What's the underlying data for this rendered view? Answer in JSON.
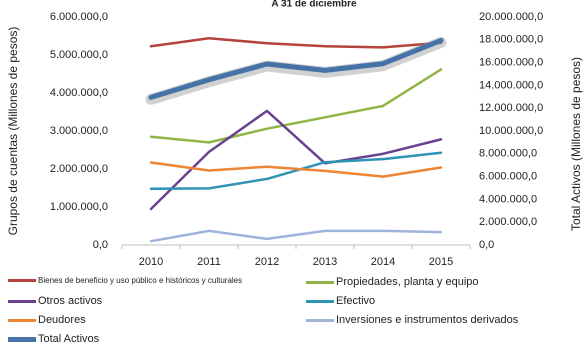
{
  "chart_data": {
    "type": "line",
    "title": "A 31 de diciembre",
    "ylabel": "Grupos de cuentas (Millones de pesos)",
    "y2label": "Total Activos (Millones de pesos)",
    "categories": [
      "2010",
      "2011",
      "2012",
      "2013",
      "2014",
      "2015"
    ],
    "ylim": [
      0,
      6000000
    ],
    "y2lim": [
      0,
      20000000
    ],
    "yticks": [
      "0,0",
      "1.000.000,0",
      "2.000.000,0",
      "3.000.000,0",
      "4.000.000,0",
      "5.000.000,0",
      "6.000.000,0"
    ],
    "y2ticks": [
      "0,0",
      "2.000.000,0",
      "4.000.000,0",
      "6.000.000,0",
      "8.000.000,0",
      "10.000.000,0",
      "12.000.000,0",
      "14.000.000,0",
      "16.000.000,0",
      "18.000.000,0",
      "20.000.000,0"
    ],
    "series": [
      {
        "name": "Bienes de beneficio y uso público e históricos y culturales",
        "axis": "left",
        "color": "#b5433d",
        "values": [
          5230000,
          5440000,
          5310000,
          5230000,
          5200000,
          5320000
        ]
      },
      {
        "name": "Propiedades, planta y equipo",
        "axis": "left",
        "color": "#8fb545",
        "values": [
          2850000,
          2700000,
          3060000,
          3360000,
          3660000,
          4620000
        ]
      },
      {
        "name": "Otros activos",
        "axis": "left",
        "color": "#6a4192",
        "values": [
          950000,
          2450000,
          3530000,
          2150000,
          2400000,
          2780000
        ]
      },
      {
        "name": "Efectivo",
        "axis": "left",
        "color": "#2f93b5",
        "values": [
          1480000,
          1490000,
          1740000,
          2180000,
          2260000,
          2430000
        ]
      },
      {
        "name": "Deudores",
        "axis": "left",
        "color": "#ee8533",
        "values": [
          2170000,
          1960000,
          2060000,
          1950000,
          1800000,
          2040000
        ]
      },
      {
        "name": "Inversiones e instrumentos derivados",
        "axis": "left",
        "color": "#9fb4dc",
        "values": [
          100000,
          370000,
          160000,
          370000,
          370000,
          340000
        ]
      },
      {
        "name": "Total Activos",
        "axis": "right",
        "color": "#4572a7",
        "values": [
          12950000,
          14500000,
          15880000,
          15320000,
          15900000,
          17950000
        ]
      }
    ]
  }
}
